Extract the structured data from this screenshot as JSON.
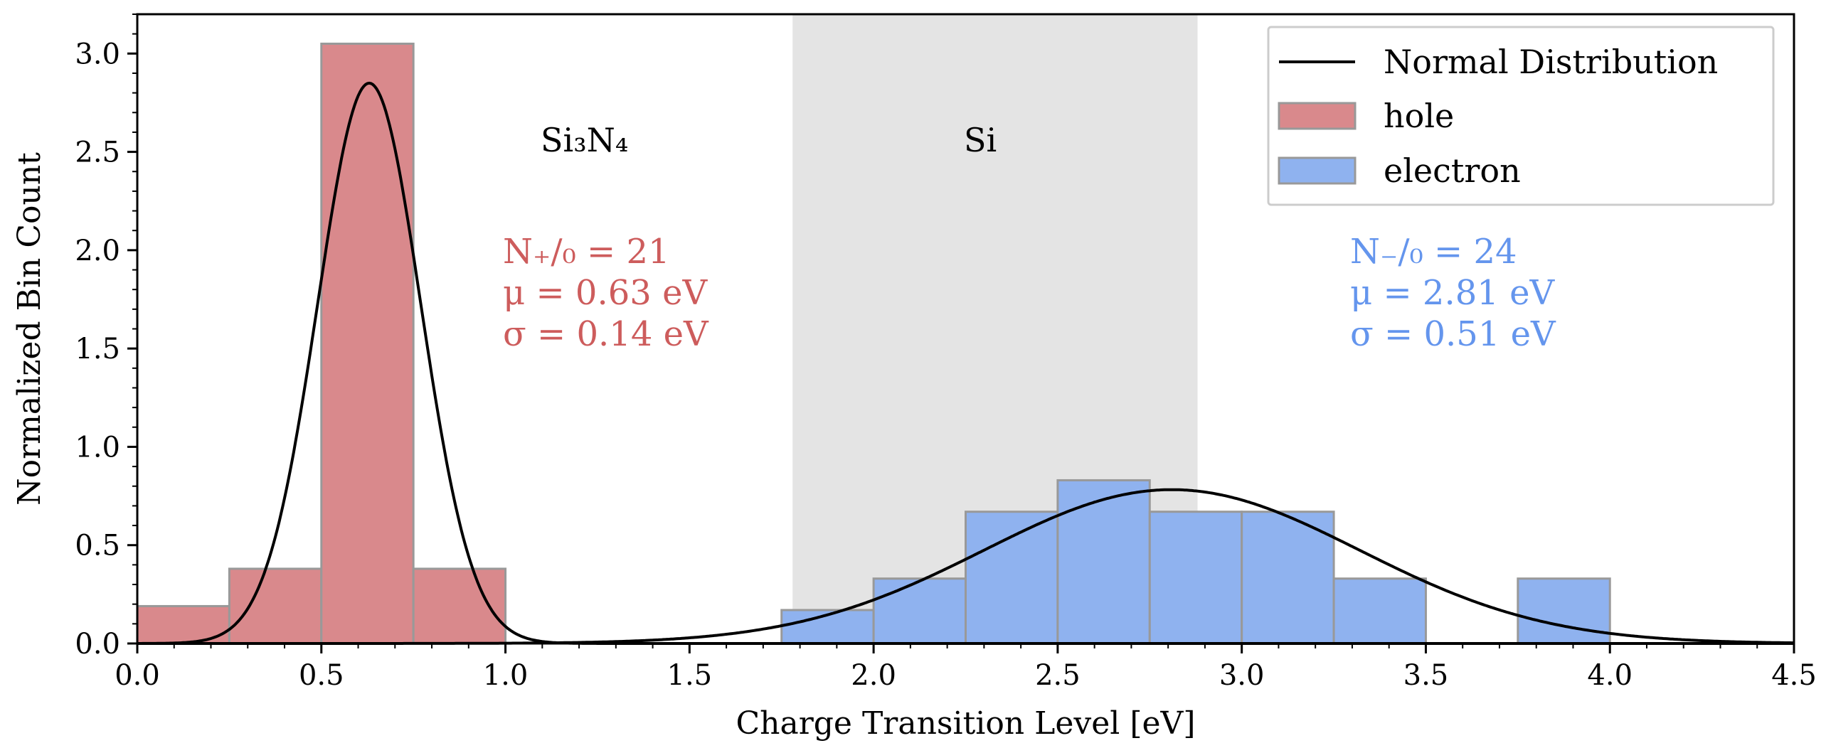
{
  "chart_data": {
    "type": "bar",
    "xlabel": "Charge Transition Level [eV]",
    "ylabel": "Normalized Bin Count",
    "xlim": [
      0.0,
      4.5
    ],
    "ylim": [
      0.0,
      3.2
    ],
    "x_ticks": [
      "0.0",
      "0.5",
      "1.0",
      "1.5",
      "2.0",
      "2.5",
      "3.0",
      "3.5",
      "4.0",
      "4.5"
    ],
    "y_ticks": [
      "0.0",
      "0.5",
      "1.0",
      "1.5",
      "2.0",
      "2.5",
      "3.0"
    ],
    "bin_width": 0.25,
    "shaded_region": {
      "label": "Si",
      "x_start": 1.78,
      "x_end": 2.88,
      "color": "#e4e4e4"
    },
    "region_labels": {
      "left": "Si₃N₄",
      "right": "Si"
    },
    "series": [
      {
        "name": "hole",
        "color": "#d9898c",
        "bins": [
          {
            "x": 0.0,
            "value": 0.19
          },
          {
            "x": 0.25,
            "value": 0.38
          },
          {
            "x": 0.5,
            "value": 3.05
          },
          {
            "x": 0.75,
            "value": 0.38
          }
        ],
        "stats": {
          "n": "N₊/₀ = 21",
          "mu": "μ = 0.63 eV",
          "sigma": "σ = 0.14 eV"
        },
        "text_color": "#cd5c5c"
      },
      {
        "name": "electron",
        "color": "#8fb2ef",
        "bins": [
          {
            "x": 1.75,
            "value": 0.17
          },
          {
            "x": 2.0,
            "value": 0.33
          },
          {
            "x": 2.25,
            "value": 0.67
          },
          {
            "x": 2.5,
            "value": 0.83
          },
          {
            "x": 2.75,
            "value": 0.67
          },
          {
            "x": 3.0,
            "value": 0.67
          },
          {
            "x": 3.25,
            "value": 0.33
          },
          {
            "x": 3.75,
            "value": 0.33
          }
        ],
        "stats": {
          "n": "N₋/₀ = 24",
          "mu": "μ = 2.81 eV",
          "sigma": "σ = 0.51 eV"
        },
        "text_color": "#6495ed"
      }
    ],
    "curves": [
      {
        "name": "Normal Distribution",
        "mu": 0.63,
        "sigma": 0.14,
        "color": "#000000"
      },
      {
        "name": "Normal Distribution",
        "mu": 2.81,
        "sigma": 0.51,
        "color": "#000000"
      }
    ],
    "legend": {
      "position": "top-right",
      "entries": [
        {
          "label": "Normal Distribution",
          "kind": "line",
          "color": "#000000"
        },
        {
          "label": "hole",
          "kind": "patch",
          "color": "#d9898c"
        },
        {
          "label": "electron",
          "kind": "patch",
          "color": "#8fb2ef"
        }
      ]
    }
  }
}
